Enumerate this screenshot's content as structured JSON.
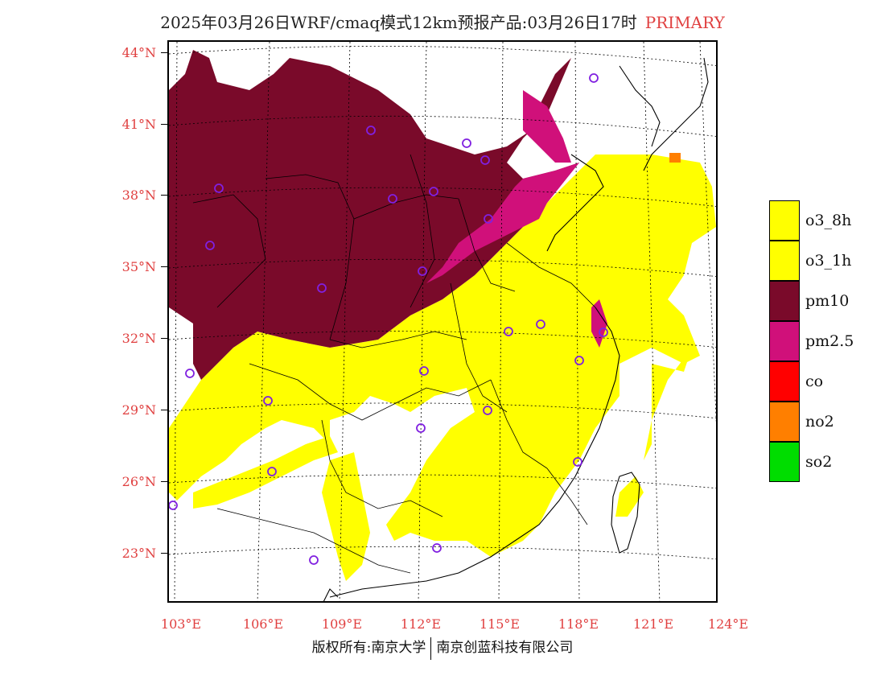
{
  "header": {
    "title": "2025年03月26日WRF/cmaq模式12km预报产品:03月26日17时",
    "tag": "PRIMARY"
  },
  "axes": {
    "lat_labels": [
      "44°N",
      "41°N",
      "38°N",
      "35°N",
      "32°N",
      "29°N",
      "26°N",
      "23°N"
    ],
    "lon_labels": [
      "103°E",
      "106°E",
      "109°E",
      "112°E",
      "115°E",
      "118°E",
      "121°E",
      "124°E"
    ]
  },
  "legend": {
    "items": [
      {
        "label": "o3_8h",
        "color": "#ffff00"
      },
      {
        "label": "o3_1h",
        "color": "#ffff00"
      },
      {
        "label": "pm10",
        "color": "#7a0a2a"
      },
      {
        "label": "pm2.5",
        "color": "#d0107a"
      },
      {
        "label": "co",
        "color": "#ff0000"
      },
      {
        "label": "no2",
        "color": "#ff7f00"
      },
      {
        "label": "so2",
        "color": "#00dd00"
      }
    ]
  },
  "colors": {
    "pm10": "#7a0a2a",
    "pm25": "#d0107a",
    "o3": "#ffff00",
    "no2": "#ff7f00",
    "station_marker": "#8020e0",
    "label": "#e04040"
  },
  "footer": {
    "left": "版权所有:南京大学",
    "right": "南京创蓝科技有限公司"
  }
}
